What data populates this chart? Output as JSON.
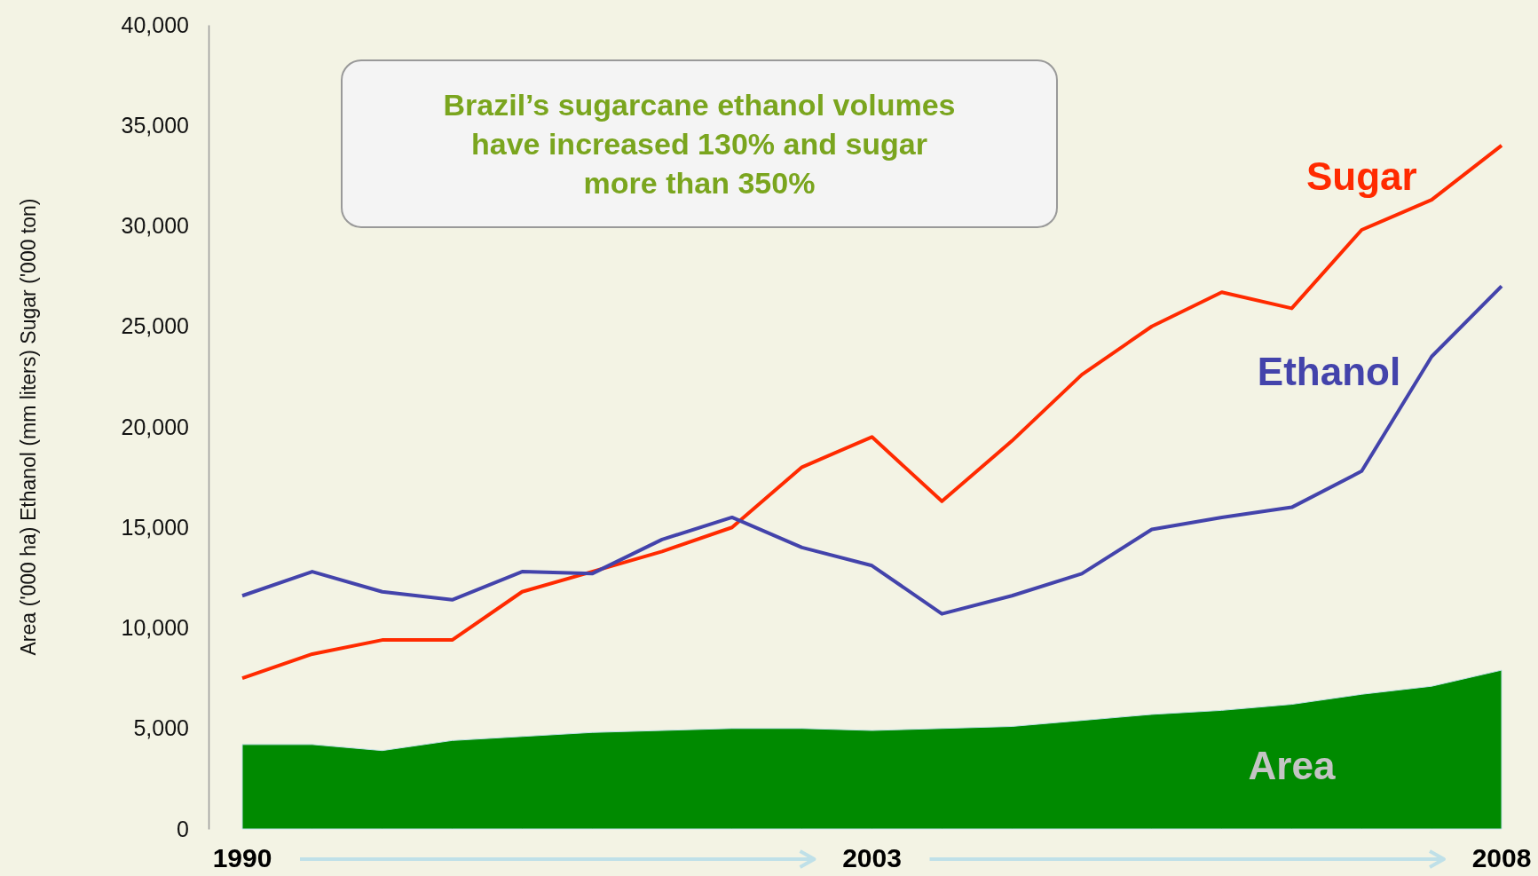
{
  "chart_data": {
    "type": "line",
    "ylabel": "Area ('000 ha) Ethanol (mm liters) Sugar ('000 ton)",
    "annotations": [
      "Brazil’s sugarcane ethanol volumes have increased 130% and sugar more than 350%"
    ],
    "categories": [
      "1990",
      null,
      null,
      null,
      null,
      null,
      null,
      null,
      null,
      "2003",
      null,
      null,
      null,
      null,
      null,
      null,
      null,
      null,
      "2008"
    ],
    "ylim": [
      0,
      40000
    ],
    "yticks": [
      {
        "value": 0,
        "label": "0"
      },
      {
        "value": 5000,
        "label": "5,000"
      },
      {
        "value": 10000,
        "label": "10,000"
      },
      {
        "value": 15000,
        "label": "15,000"
      },
      {
        "value": 20000,
        "label": "20,000"
      },
      {
        "value": 25000,
        "label": "25,000"
      },
      {
        "value": 30000,
        "label": "30,000"
      },
      {
        "value": 35000,
        "label": "35,000"
      },
      {
        "value": 40000,
        "label": "40,000"
      }
    ],
    "series": [
      {
        "name": "Sugar",
        "color": "#ff2a00",
        "values": [
          7500,
          8700,
          9400,
          9400,
          11800,
          12800,
          13800,
          15000,
          18000,
          19500,
          16300,
          19300,
          22600,
          25000,
          26700,
          25900,
          29800,
          31300,
          34000
        ]
      },
      {
        "name": "Ethanol",
        "color": "#4343ab",
        "values": [
          11600,
          12800,
          11800,
          11400,
          12800,
          12700,
          14400,
          15500,
          14000,
          13100,
          10700,
          11600,
          12700,
          14900,
          15500,
          16000,
          17800,
          23500,
          27000
        ]
      },
      {
        "name": "Area",
        "type": "area",
        "color": "#008a00",
        "values": [
          4200,
          4200,
          3900,
          4400,
          4600,
          4800,
          4900,
          5000,
          5000,
          4900,
          5000,
          5100,
          5400,
          5700,
          5900,
          6200,
          6700,
          7100,
          7900
        ]
      }
    ]
  }
}
